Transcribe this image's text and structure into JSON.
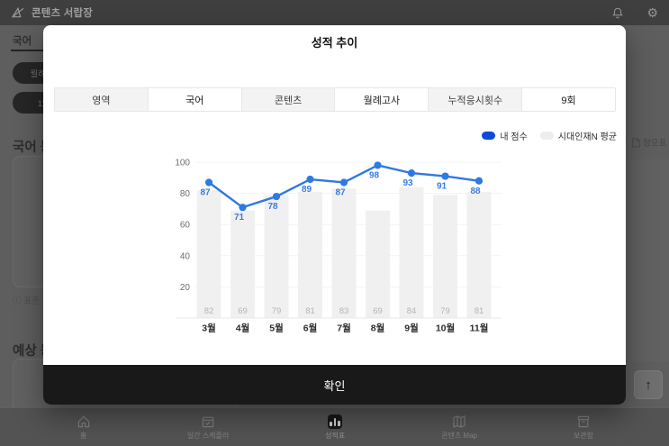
{
  "topbar": {
    "title": "콘텐츠 서랍장"
  },
  "background": {
    "tab_label": "국어",
    "exam_pill": "월례고사",
    "round_pill": "11회",
    "section1_heading": "국어 등",
    "info_icon": "ⓘ",
    "note_text": "표준",
    "section2_heading": "예상 등",
    "errata_label": "정오표",
    "scroll_top_icon": "↑"
  },
  "modal": {
    "title": "성적 추이",
    "filters": [
      {
        "text": "영역",
        "variant": "label"
      },
      {
        "text": "국어",
        "variant": "value"
      },
      {
        "text": "콘텐츠",
        "variant": "label"
      },
      {
        "text": "월례고사",
        "variant": "value"
      },
      {
        "text": "누적응시횟수",
        "variant": "label"
      },
      {
        "text": "9회",
        "variant": "value"
      }
    ],
    "confirm_label": "확인"
  },
  "chart_data": {
    "type": "bar+line",
    "categories": [
      "3월",
      "4월",
      "5월",
      "6월",
      "7월",
      "8월",
      "9월",
      "10월",
      "11월"
    ],
    "series": [
      {
        "name": "내 점수",
        "type": "line",
        "color": "#2e79e3",
        "label_color": "#3a7be0",
        "values": [
          87,
          71,
          78,
          89,
          87,
          98,
          93,
          91,
          88
        ]
      },
      {
        "name": "시대인재N 평균",
        "type": "bar",
        "color": "#f0f0f0",
        "label_color": "#b4b4b4",
        "values": [
          82,
          69,
          79,
          81,
          83,
          69,
          84,
          79,
          81
        ]
      }
    ],
    "yticks": [
      20,
      40,
      60,
      80,
      100
    ],
    "ylim": [
      0,
      100
    ],
    "grid": true,
    "legend_position": "top-right",
    "legend": [
      {
        "label": "내 점수",
        "color": "#0f49d8"
      },
      {
        "label": "시대인재N 평균",
        "color": "#ededed"
      }
    ]
  },
  "bottom_nav": {
    "items": [
      {
        "label": "홈",
        "icon": "home-icon",
        "active": false
      },
      {
        "label": "일간 스케줄러",
        "icon": "calendar-icon",
        "active": false
      },
      {
        "label": "성적표",
        "icon": "chart-icon",
        "active": true
      },
      {
        "label": "콘텐츠 Map",
        "icon": "map-icon",
        "active": false
      },
      {
        "label": "보관함",
        "icon": "archive-icon",
        "active": false
      }
    ]
  }
}
